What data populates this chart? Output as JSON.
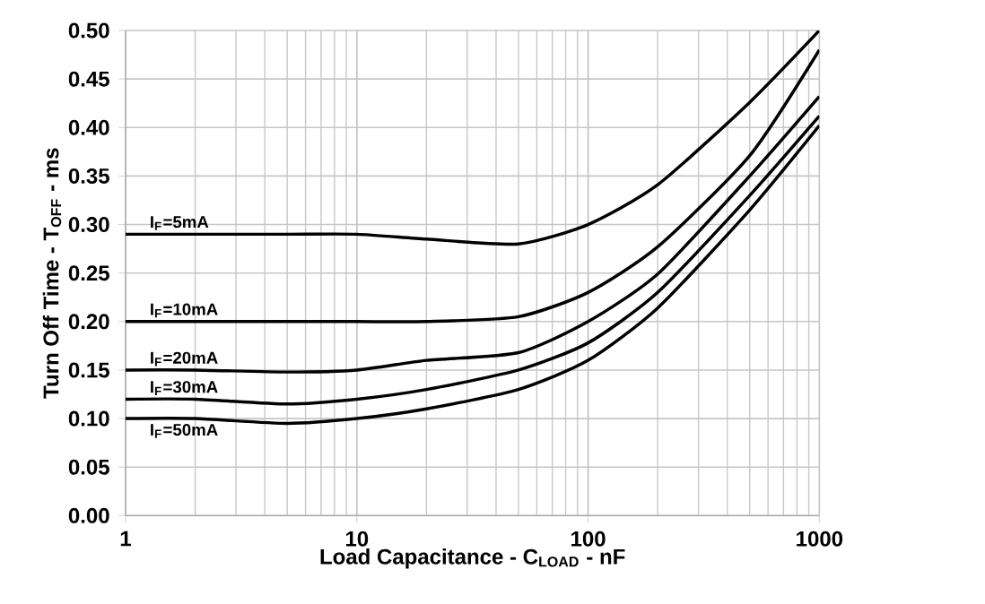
{
  "chart_data": {
    "type": "line",
    "xlabel": "Load Capacitance - C$_{LOAD}$ - nF",
    "ylabel": "Turn Off Time - T$_{OFF}$ - ms",
    "x": [
      1,
      2,
      5,
      10,
      20,
      50,
      100,
      200,
      500,
      1000
    ],
    "series": [
      {
        "name": "I$_{F}$=5mA",
        "color": "#000000",
        "values": [
          0.29,
          0.29,
          0.29,
          0.29,
          0.285,
          0.28,
          0.3,
          0.341,
          0.426,
          0.5
        ]
      },
      {
        "name": "I$_{F}$=10mA",
        "color": "#000000",
        "values": [
          0.2,
          0.2,
          0.2,
          0.2,
          0.2,
          0.205,
          0.23,
          0.277,
          0.371,
          0.48
        ]
      },
      {
        "name": "I$_{F}$=20mA",
        "color": "#000000",
        "values": [
          0.15,
          0.15,
          0.148,
          0.15,
          0.16,
          0.168,
          0.2,
          0.249,
          0.35,
          0.432
        ]
      },
      {
        "name": "I$_{F}$=30mA",
        "color": "#000000",
        "values": [
          0.12,
          0.12,
          0.115,
          0.12,
          0.13,
          0.15,
          0.178,
          0.23,
          0.33,
          0.412
        ]
      },
      {
        "name": "I$_{F}$=50mA",
        "color": "#000000",
        "values": [
          0.1,
          0.1,
          0.095,
          0.1,
          0.11,
          0.13,
          0.16,
          0.214,
          0.315,
          0.402
        ]
      }
    ],
    "log": "x",
    "xlim": [
      1,
      1000
    ],
    "ylim": [
      0,
      0.5
    ],
    "xticks": [
      1,
      10,
      100,
      1000
    ],
    "yticks": [
      {
        "value": 0,
        "label": "0.00"
      },
      {
        "value": 0.05,
        "label": "0.05"
      },
      {
        "value": 0.1,
        "label": "0.10"
      },
      {
        "value": 0.15,
        "label": "0.15"
      },
      {
        "value": 0.2,
        "label": "0.20"
      },
      {
        "value": 0.25,
        "label": "0.25"
      },
      {
        "value": 0.3,
        "label": "0.30"
      },
      {
        "value": 0.35,
        "label": "0.35"
      },
      {
        "value": 0.4,
        "label": "0.40"
      },
      {
        "value": 0.45,
        "label": "0.45"
      },
      {
        "value": 0.5,
        "label": "0.50"
      }
    ],
    "grid": true,
    "marker": "none",
    "line_style": "solid"
  }
}
